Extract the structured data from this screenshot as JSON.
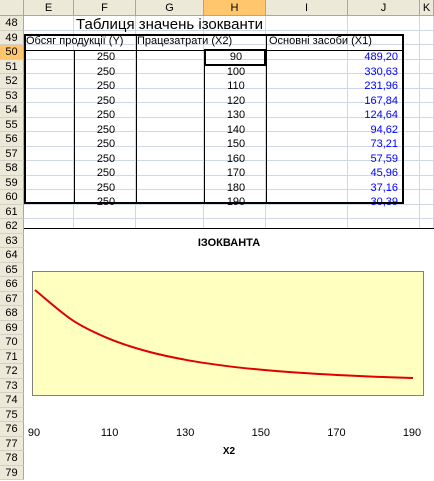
{
  "columns": [
    "E",
    "F",
    "G",
    "H",
    "I",
    "J",
    "K"
  ],
  "rows": [
    "48",
    "49",
    "50",
    "51",
    "52",
    "53",
    "54",
    "55",
    "56",
    "57",
    "58",
    "59",
    "60",
    "61",
    "62",
    "63",
    "64",
    "65",
    "66",
    "67",
    "68",
    "69",
    "70",
    "71",
    "72",
    "73",
    "74",
    "75",
    "76",
    "77",
    "78",
    "79"
  ],
  "selected_column": "H",
  "selected_row": "50",
  "table_title": "Таблиця значень ізокванти",
  "headers": {
    "output": "Обсяг продукції (Y)",
    "labor": "Працезатрати (X2)",
    "capital": "Основні засоби (X1)"
  },
  "table_rows": [
    {
      "y": "250",
      "x2": "90",
      "x1": "489,20"
    },
    {
      "y": "250",
      "x2": "100",
      "x1": "330,63"
    },
    {
      "y": "250",
      "x2": "110",
      "x1": "231,96"
    },
    {
      "y": "250",
      "x2": "120",
      "x1": "167,84"
    },
    {
      "y": "250",
      "x2": "130",
      "x1": "124,64"
    },
    {
      "y": "250",
      "x2": "140",
      "x1": "94,62"
    },
    {
      "y": "250",
      "x2": "150",
      "x1": "73,21"
    },
    {
      "y": "250",
      "x2": "160",
      "x1": "57,59"
    },
    {
      "y": "250",
      "x2": "170",
      "x1": "45,96"
    },
    {
      "y": "250",
      "x2": "180",
      "x1": "37,16"
    },
    {
      "y": "250",
      "x2": "190",
      "x1": "30,39"
    }
  ],
  "chart_data": {
    "type": "line",
    "title": "ІЗОКВАНТА",
    "xlabel": "X2",
    "ylabel": "",
    "x": [
      90,
      100,
      110,
      120,
      130,
      140,
      150,
      160,
      170,
      180,
      190
    ],
    "series": [
      {
        "values": [
          489.2,
          330.63,
          231.96,
          167.84,
          124.64,
          94.62,
          73.21,
          57.59,
          45.96,
          37.16,
          30.39
        ]
      }
    ],
    "xticks": [
      "90",
      "110",
      "130",
      "150",
      "170",
      "190"
    ],
    "xlim": [
      90,
      190
    ],
    "line_color": "#e00000",
    "plot_bg": "#ffffc0"
  }
}
